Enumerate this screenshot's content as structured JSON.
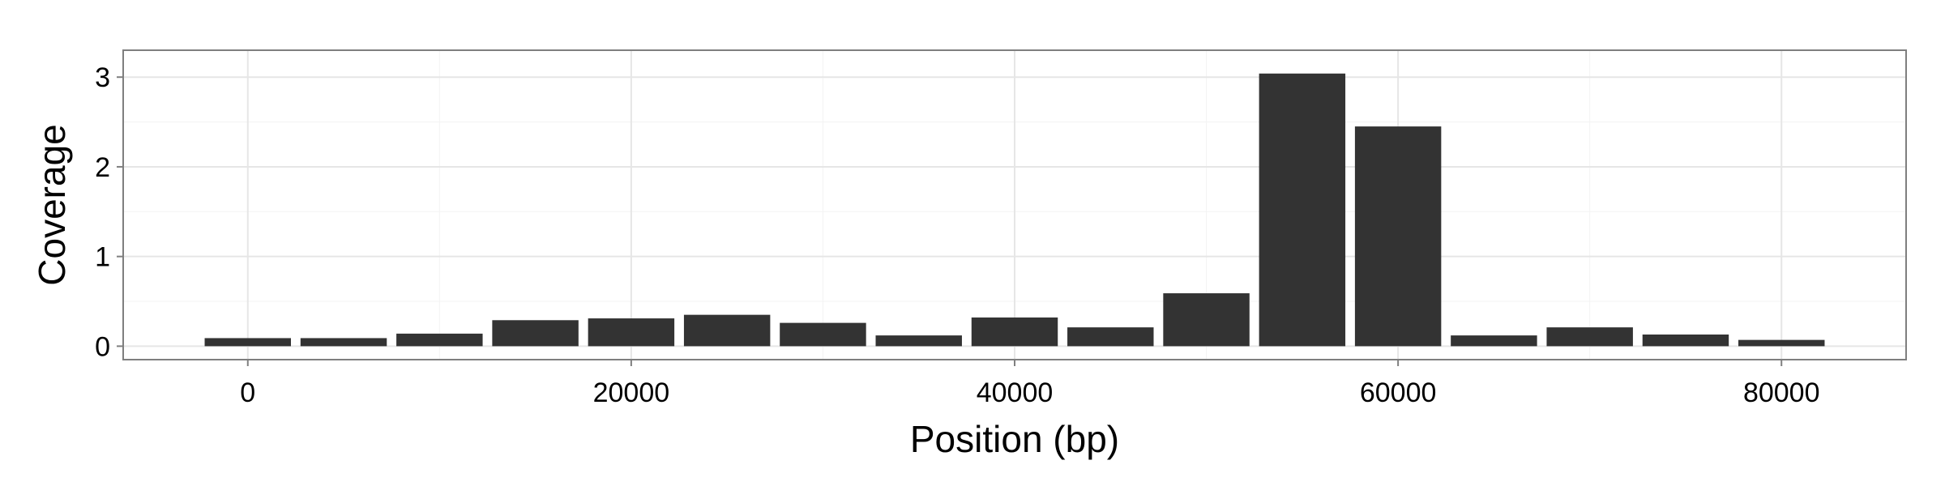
{
  "chart_data": {
    "type": "bar",
    "xlabel": "Position (bp)",
    "ylabel": "Coverage",
    "xlim": [
      -6500,
      86500
    ],
    "ylim": [
      -0.15,
      3.3
    ],
    "xticks": [
      0,
      20000,
      40000,
      60000,
      80000
    ],
    "xtick_labels": [
      "0",
      "20000",
      "40000",
      "60000",
      "80000"
    ],
    "yticks": [
      0,
      1,
      2,
      3
    ],
    "ytick_labels": [
      "0",
      "1",
      "2",
      "3"
    ],
    "grid": true,
    "bar_width": 4500,
    "bar_color": "#333333",
    "x": [
      0,
      5000,
      10000,
      15000,
      20000,
      25000,
      30000,
      35000,
      40000,
      45000,
      50000,
      55000,
      60000,
      65000,
      70000,
      75000,
      80000
    ],
    "values": [
      0.09,
      0.09,
      0.14,
      0.29,
      0.31,
      0.35,
      0.26,
      0.12,
      0.32,
      0.21,
      0.59,
      3.04,
      2.45,
      0.12,
      0.21,
      0.13,
      0.07
    ]
  }
}
